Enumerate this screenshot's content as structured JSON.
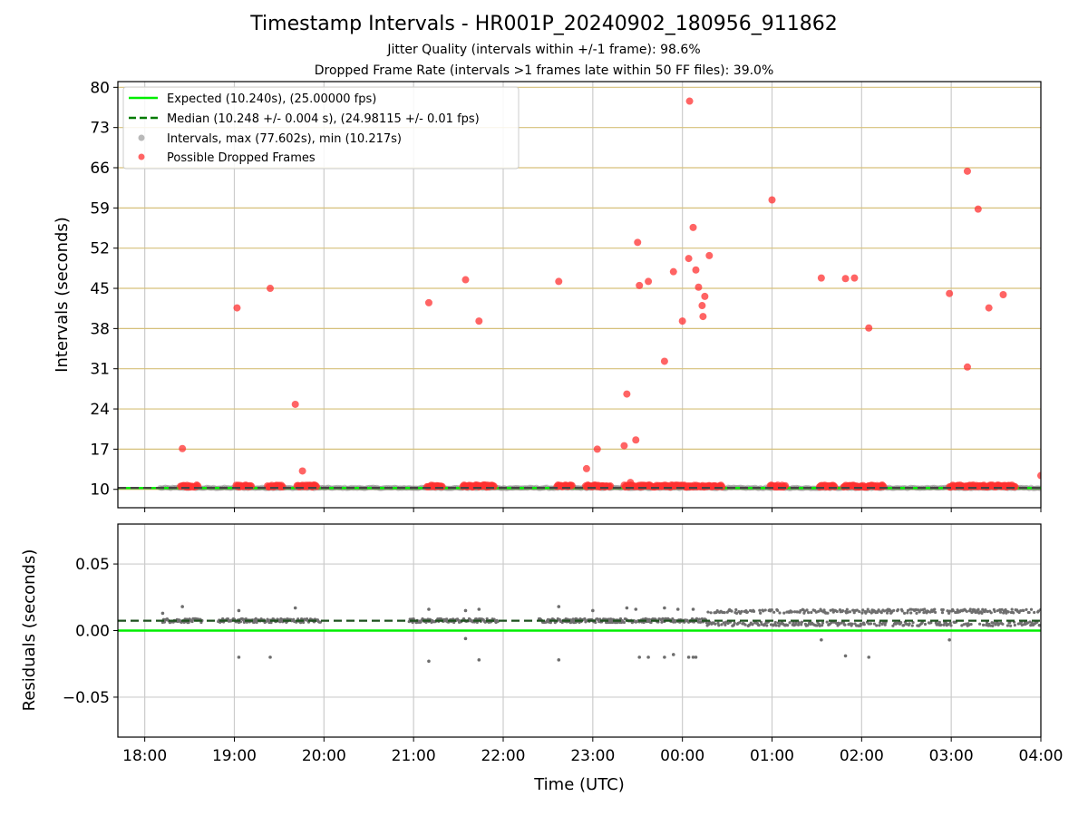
{
  "chart_data": [
    {
      "type": "scatter",
      "title": "Timestamp Intervals - HR001P_20240902_180956_911862",
      "subtitle_1": "Jitter Quality (intervals within +/-1 frame): 98.6%",
      "subtitle_2": "Dropped Frame Rate (intervals >1 frames late within 50 FF files): 39.0%",
      "ylabel": "Intervals (seconds)",
      "xlim_hours": [
        17.7,
        28.0
      ],
      "ylim": [
        6.8,
        81.0
      ],
      "yticks": [
        10,
        17,
        24,
        31,
        38,
        45,
        52,
        59,
        66,
        73,
        80
      ],
      "ytick_labels": [
        "10",
        "17",
        "24",
        "31",
        "38",
        "45",
        "52",
        "59",
        "66",
        "73",
        "80"
      ],
      "grid": true,
      "legend_position": "upper-left",
      "legend": [
        "Expected (10.240s), (25.00000 fps)",
        "Median (10.248 +/- 0.004 s), (24.98115 +/- 0.01 fps)",
        "Intervals, max (77.602s), min (10.217s)",
        "Possible Dropped Frames"
      ],
      "expected_interval": 10.24,
      "median_interval": 10.248,
      "colors": {
        "expected": "#00ee00",
        "median": "#007a00",
        "intervals": "#808080",
        "dropped": "#ff3030",
        "hgrid": "#d6c07a"
      },
      "intervals_x_range_hours": [
        18.17,
        28.0
      ],
      "dropped_frame_clusters": [
        {
          "from": 18.4,
          "to": 18.6
        },
        {
          "from": 19.02,
          "to": 19.2
        },
        {
          "from": 19.37,
          "to": 19.55
        },
        {
          "from": 19.7,
          "to": 19.92
        },
        {
          "from": 21.15,
          "to": 21.33
        },
        {
          "from": 21.55,
          "to": 21.9
        },
        {
          "from": 22.6,
          "to": 22.78
        },
        {
          "from": 22.92,
          "to": 23.2
        },
        {
          "from": 23.35,
          "to": 24.45
        },
        {
          "from": 24.98,
          "to": 25.15
        },
        {
          "from": 25.53,
          "to": 25.7
        },
        {
          "from": 25.8,
          "to": 26.25
        },
        {
          "from": 26.98,
          "to": 27.72
        }
      ],
      "dropped_frames_outliers": [
        [
          18.42,
          17.1
        ],
        [
          19.03,
          41.6
        ],
        [
          19.4,
          45.0
        ],
        [
          19.68,
          24.8
        ],
        [
          19.76,
          13.2
        ],
        [
          21.17,
          42.5
        ],
        [
          21.58,
          46.5
        ],
        [
          21.73,
          39.3
        ],
        [
          22.62,
          46.2
        ],
        [
          22.93,
          13.6
        ],
        [
          23.05,
          17.0
        ],
        [
          23.35,
          17.6
        ],
        [
          23.38,
          26.6
        ],
        [
          23.42,
          11.2
        ],
        [
          23.48,
          18.6
        ],
        [
          23.5,
          53.0
        ],
        [
          23.52,
          45.5
        ],
        [
          23.62,
          46.2
        ],
        [
          23.8,
          32.3
        ],
        [
          23.9,
          47.9
        ],
        [
          24.0,
          39.3
        ],
        [
          24.07,
          50.2
        ],
        [
          24.08,
          77.6
        ],
        [
          24.12,
          55.6
        ],
        [
          24.15,
          48.2
        ],
        [
          24.18,
          45.2
        ],
        [
          24.22,
          42.0
        ],
        [
          24.23,
          40.1
        ],
        [
          24.25,
          43.6
        ],
        [
          24.3,
          50.7
        ],
        [
          25.0,
          60.4
        ],
        [
          25.55,
          46.8
        ],
        [
          25.82,
          46.7
        ],
        [
          25.92,
          46.8
        ],
        [
          26.08,
          38.1
        ],
        [
          26.98,
          44.1
        ],
        [
          27.18,
          65.4
        ],
        [
          27.18,
          31.3
        ],
        [
          27.3,
          58.8
        ],
        [
          27.42,
          41.6
        ],
        [
          27.58,
          43.9
        ],
        [
          28.0,
          12.4
        ]
      ]
    },
    {
      "type": "scatter",
      "xlabel": "Time (UTC)",
      "ylabel": "Residuals (seconds)",
      "xlim_hours": [
        17.7,
        28.0
      ],
      "ylim": [
        -0.08,
        0.08
      ],
      "yticks": [
        -0.05,
        0.0,
        0.05
      ],
      "ytick_labels": [
        "−0.05",
        "0.00",
        "0.05"
      ],
      "xticks_hours": [
        18,
        19,
        20,
        21,
        22,
        23,
        24,
        25,
        26,
        27,
        28
      ],
      "xtick_labels": [
        "18:00",
        "19:00",
        "20:00",
        "21:00",
        "22:00",
        "23:00",
        "00:00",
        "01:00",
        "02:00",
        "03:00",
        "04:00"
      ],
      "grid": true,
      "expected_residual": 0.0,
      "median_residual": 0.0074,
      "residual_band_early": [
        0.006,
        0.009
      ],
      "residual_band_late": [
        0.0035,
        0.016
      ],
      "late_band_start_hours": 24.27,
      "negative_residual_points": [
        [
          19.05,
          -0.02
        ],
        [
          19.4,
          -0.02
        ],
        [
          21.17,
          -0.023
        ],
        [
          21.58,
          -0.006
        ],
        [
          21.73,
          -0.022
        ],
        [
          22.62,
          -0.022
        ],
        [
          23.52,
          -0.02
        ],
        [
          23.62,
          -0.02
        ],
        [
          23.8,
          -0.02
        ],
        [
          23.9,
          -0.018
        ],
        [
          24.07,
          -0.02
        ],
        [
          24.12,
          -0.02
        ],
        [
          24.15,
          -0.02
        ],
        [
          25.55,
          -0.007
        ],
        [
          25.82,
          -0.019
        ],
        [
          26.08,
          -0.02
        ],
        [
          26.98,
          -0.007
        ]
      ],
      "positive_spike_points": [
        [
          18.2,
          0.013
        ],
        [
          18.42,
          0.018
        ],
        [
          19.05,
          0.015
        ],
        [
          19.68,
          0.017
        ],
        [
          21.17,
          0.016
        ],
        [
          21.58,
          0.015
        ],
        [
          21.73,
          0.016
        ],
        [
          22.62,
          0.018
        ],
        [
          23.0,
          0.015
        ],
        [
          23.38,
          0.017
        ],
        [
          23.48,
          0.016
        ],
        [
          23.8,
          0.017
        ],
        [
          23.95,
          0.016
        ],
        [
          24.12,
          0.016
        ]
      ]
    }
  ]
}
